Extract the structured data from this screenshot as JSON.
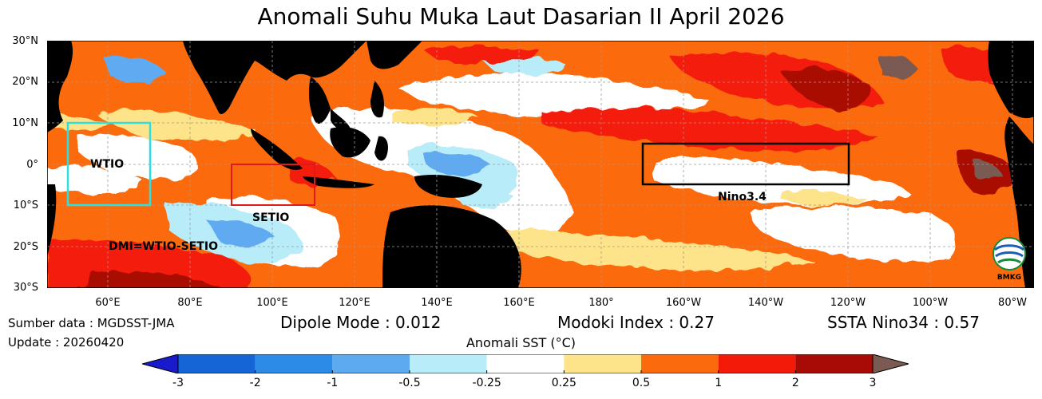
{
  "title": "Anomali Suhu Muka Laut Dasarian II April 2026",
  "lat_labels": [
    "30°N",
    "20°N",
    "10°N",
    "0°",
    "10°S",
    "20°S",
    "30°S"
  ],
  "lon_labels": [
    "60°E",
    "80°E",
    "100°E",
    "120°E",
    "140°E",
    "160°E",
    "180°",
    "160°W",
    "140°W",
    "120°W",
    "100°W",
    "80°W"
  ],
  "regions": {
    "wtio": "WTIO",
    "setio": "SETIO",
    "nino34": "Nino3.4",
    "dmi": "DMI=WTIO-SETIO"
  },
  "logo_text": "BMKG",
  "info": {
    "source": "Sumber data : MGDSST-JMA",
    "update": "Update : 20260420"
  },
  "indices": {
    "dipole": "Dipole Mode : 0.012",
    "modoki": "Modoki Index : 0.27",
    "nino34": "SSTA Nino34 : 0.57"
  },
  "colorbar": {
    "label": "Anomali SST (°C)",
    "ticks": [
      "-3",
      "-2",
      "-1",
      "-0.5",
      "-0.25",
      "0.25",
      "0.5",
      "1",
      "2",
      "3"
    ],
    "colors": [
      "#1a1acd",
      "#1565d6",
      "#2b8be6",
      "#5eaaf0",
      "#b8ecf8",
      "#ffffff",
      "#fde48a",
      "#fb6a0c",
      "#f41a0a",
      "#a80b05",
      "#7a5a52"
    ]
  }
}
